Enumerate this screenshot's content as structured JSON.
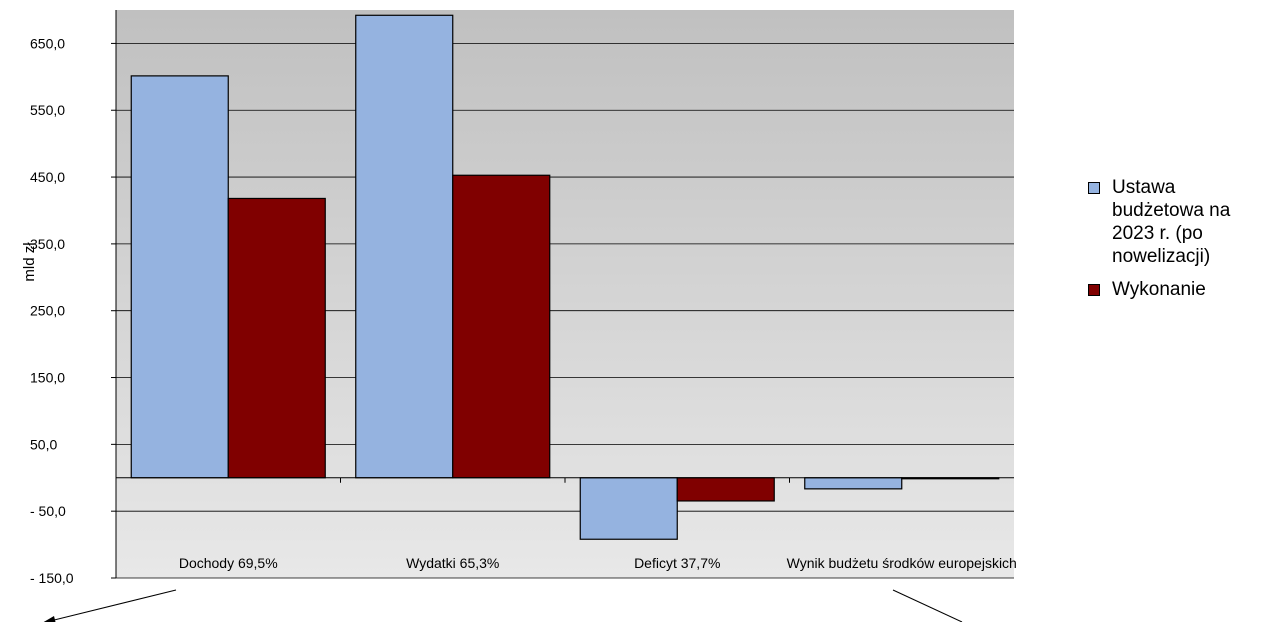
{
  "chart_data": {
    "type": "bar",
    "title": "",
    "xlabel": "",
    "ylabel": "mld zł",
    "categories": [
      "Dochody 69,5%",
      "Wydatki 65,3%",
      "Deficyt 37,7%",
      "Wynik budżetu środków europejskich"
    ],
    "series": [
      {
        "name": "Ustawa budżetowa na 2023 r. (po nowelizacji)",
        "color": "#95b3e0",
        "values": [
          601.4,
          692.1,
          -92.0,
          -16.6
        ]
      },
      {
        "name": "Wykonanie",
        "color": "#800000",
        "values": [
          418.0,
          452.7,
          -34.7,
          -0.6
        ]
      }
    ],
    "ylim": [
      -150,
      700
    ],
    "yticks": [
      650,
      550,
      450,
      350,
      250,
      150,
      50,
      -50,
      -150
    ],
    "ytick_labels": [
      "650,0",
      "550,0",
      "450,0",
      "350,0",
      "250,0",
      "150,0",
      "50,0",
      "- 50,0",
      "- 150,0"
    ],
    "grid": true,
    "legend_position": "right"
  }
}
